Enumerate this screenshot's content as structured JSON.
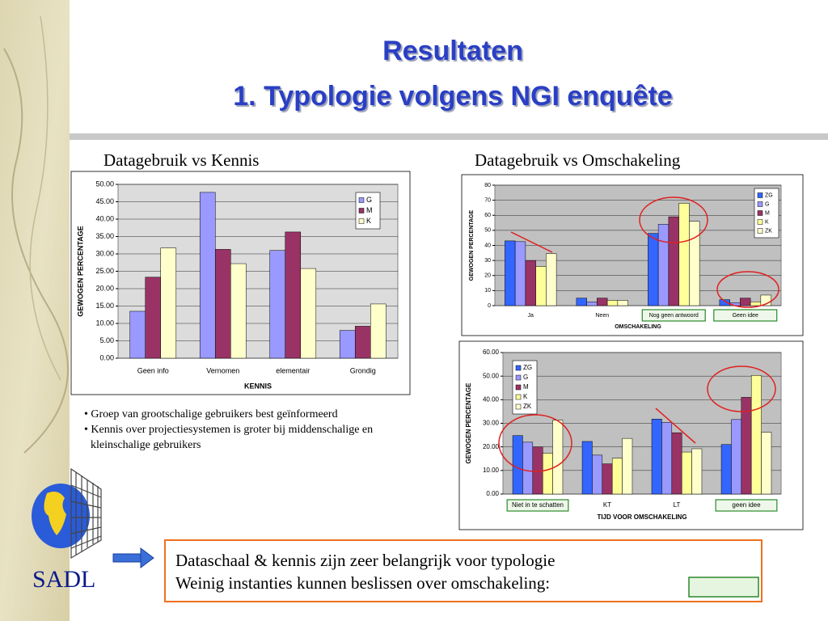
{
  "slide": {
    "title_lines": [
      "Resultaten",
      "1. Typologie volgens NGI enquête"
    ],
    "bullets": [
      "Groep van grootschalige gebruikers best geïnformeerd",
      "Kennis over projectiesystemen is groter bij middenschalige en kleinschalige gebruikers"
    ],
    "box_lines": [
      "Dataschaal & kennis zijn zeer belangrijk voor typologie",
      "Weinig instanties kunnen beslissen over omschakeling:"
    ],
    "logo": "SADL"
  },
  "chart_data": [
    {
      "type": "bar",
      "title": "Datagebruik vs Kennis",
      "x_label": "KENNIS",
      "y_label": "GEWOGEN PERCENTAGE",
      "categories": [
        "Geen info",
        "Vernomen",
        "elementair",
        "Grondig"
      ],
      "highlight": [
        false,
        false,
        false,
        false
      ],
      "plot_bg": "#dcdcdc",
      "series": [
        {
          "name": "G",
          "color": "#9999ff",
          "values": [
            13.5,
            47.7,
            31.0,
            8.0
          ]
        },
        {
          "name": "M",
          "color": "#993366",
          "values": [
            23.3,
            31.3,
            36.3,
            9.2
          ]
        },
        {
          "name": "K",
          "color": "#ffffcc",
          "values": [
            31.7,
            27.2,
            25.8,
            15.6
          ]
        }
      ],
      "ylim": [
        0,
        50
      ],
      "yticks": [
        {
          "value": 0,
          "label": "0.00"
        },
        {
          "value": 5,
          "label": "5.00"
        },
        {
          "value": 10,
          "label": "10.00"
        },
        {
          "value": 15,
          "label": "15.00"
        },
        {
          "value": 20,
          "label": "20.00"
        },
        {
          "value": 25,
          "label": "25.00"
        },
        {
          "value": 30,
          "label": "30.00"
        },
        {
          "value": 35,
          "label": "35.00"
        },
        {
          "value": 40,
          "label": "40.00"
        },
        {
          "value": 45,
          "label": "45.00"
        },
        {
          "value": 50,
          "label": "50.00"
        }
      ],
      "grid": true
    },
    {
      "type": "bar",
      "title": "Datagebruik vs Omschakeling",
      "x_label": "OMSCHAKELING",
      "y_label": "GEWOGEN PERCENTAGE",
      "categories": [
        "Ja",
        "Neen",
        "Nog geen antwoord",
        "Geen idee"
      ],
      "highlight": [
        false,
        false,
        true,
        true
      ],
      "plot_bg": "#c0c0c0",
      "series": [
        {
          "name": "ZG",
          "color": "#3366ff",
          "values": [
            43,
            5,
            48,
            4
          ]
        },
        {
          "name": "G",
          "color": "#9999ff",
          "values": [
            42.5,
            2.5,
            54,
            2
          ]
        },
        {
          "name": "M",
          "color": "#993366",
          "values": [
            30,
            5,
            59,
            5
          ]
        },
        {
          "name": "K",
          "color": "#ffff99",
          "values": [
            26,
            3.5,
            68,
            2.5
          ]
        },
        {
          "name": "ZK",
          "color": "#ffffcc",
          "values": [
            34.5,
            3.5,
            56,
            7
          ]
        }
      ],
      "ylim": [
        0,
        80
      ],
      "yticks": [
        0,
        10,
        20,
        30,
        40,
        50,
        60,
        70,
        80
      ],
      "grid": true
    },
    {
      "type": "bar",
      "x_label": "TIJD VOOR OMSCHAKELING",
      "y_label": "GEWOGEN PERCENTAGE",
      "categories": [
        "Niet in te schatten",
        "KT",
        "LT",
        "geen idee"
      ],
      "highlight": [
        true,
        false,
        false,
        true
      ],
      "plot_bg": "#c0c0c0",
      "series": [
        {
          "name": "ZG",
          "color": "#3366ff",
          "values": [
            24.8,
            22.3,
            31.8,
            21
          ]
        },
        {
          "name": "G",
          "color": "#9999ff",
          "values": [
            22,
            16.5,
            30.4,
            31.6
          ]
        },
        {
          "name": "M",
          "color": "#993366",
          "values": [
            20,
            12.8,
            26,
            41
          ]
        },
        {
          "name": "K",
          "color": "#ffff99",
          "values": [
            17.3,
            15.2,
            17.8,
            50.3
          ]
        },
        {
          "name": "ZK",
          "color": "#ffffcc",
          "values": [
            31.3,
            23.6,
            19.2,
            26.2
          ]
        }
      ],
      "ylim": [
        0,
        60
      ],
      "yticks": [
        {
          "value": 0,
          "label": "0.00"
        },
        {
          "value": 10,
          "label": "10.00"
        },
        {
          "value": 20,
          "label": "20.00"
        },
        {
          "value": 30,
          "label": "30.00"
        },
        {
          "value": 40,
          "label": "40.00"
        },
        {
          "value": 50,
          "label": "50.00"
        },
        {
          "value": 60,
          "label": "60.00"
        }
      ],
      "grid": true
    }
  ]
}
